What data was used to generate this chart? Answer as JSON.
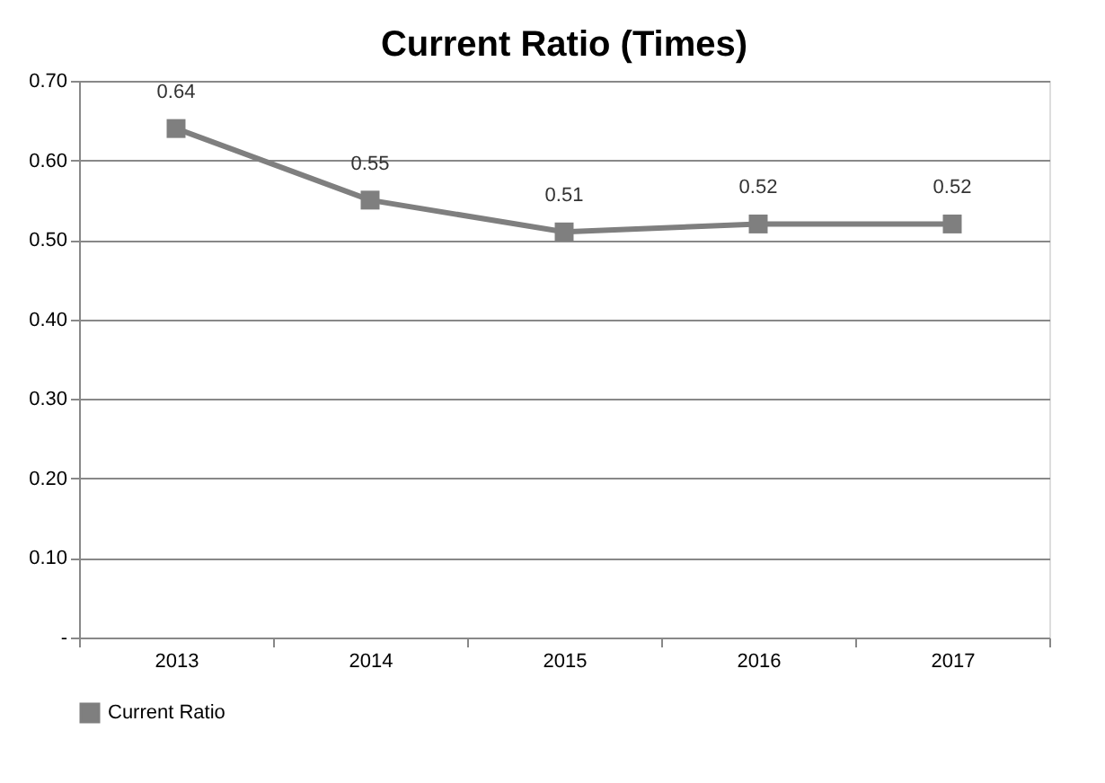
{
  "chart_data": {
    "type": "line",
    "title": "Current Ratio (Times)",
    "categories": [
      "2013",
      "2014",
      "2015",
      "2016",
      "2017"
    ],
    "series": [
      {
        "name": "Current Ratio",
        "color": "#7f7f7f",
        "values": [
          0.64,
          0.55,
          0.51,
          0.52,
          0.52
        ]
      }
    ],
    "ylim": [
      0,
      0.7
    ],
    "yticks": [
      {
        "value": 0,
        "label": "-"
      },
      {
        "value": 0.1,
        "label": "0.10"
      },
      {
        "value": 0.2,
        "label": "0.20"
      },
      {
        "value": 0.3,
        "label": "0.30"
      },
      {
        "value": 0.4,
        "label": "0.40"
      },
      {
        "value": 0.5,
        "label": "0.50"
      },
      {
        "value": 0.6,
        "label": "0.60"
      },
      {
        "value": 0.7,
        "label": "0.70"
      }
    ],
    "data_labels": true,
    "grid": "y",
    "legend": "bottom",
    "marker": "square",
    "line_style": "solid"
  }
}
